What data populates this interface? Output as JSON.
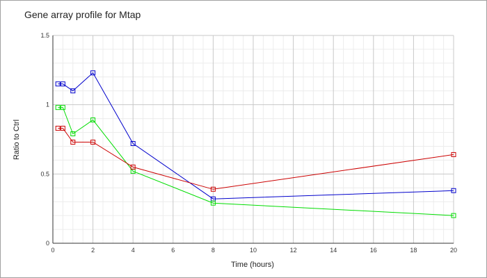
{
  "chart_data": {
    "type": "line",
    "title": "Gene array profile for Mtap",
    "xlabel": "Time (hours)",
    "ylabel": "Ratio to Ctrl",
    "xlim": [
      0,
      20
    ],
    "ylim": [
      0,
      1.5
    ],
    "x_ticks": [
      "0",
      "2",
      "4",
      "6",
      "8",
      "10",
      "12",
      "14",
      "16",
      "18",
      "20"
    ],
    "y_ticks": [
      "0",
      "0.5",
      "1",
      "1.5"
    ],
    "grid": true,
    "legend": "none",
    "x": [
      0.25,
      0.5,
      1,
      2,
      4,
      8,
      20
    ],
    "series": [
      {
        "color": "#0000cc",
        "marker": "square",
        "values": [
          1.15,
          1.15,
          1.1,
          1.23,
          0.72,
          0.32,
          0.38
        ]
      },
      {
        "color": "#00dd00",
        "marker": "square",
        "values": [
          0.98,
          0.98,
          0.79,
          0.89,
          0.52,
          0.29,
          0.2
        ]
      },
      {
        "color": "#cc0000",
        "marker": "square",
        "values": [
          0.83,
          0.83,
          0.73,
          0.73,
          0.55,
          0.39,
          0.64
        ]
      }
    ]
  }
}
